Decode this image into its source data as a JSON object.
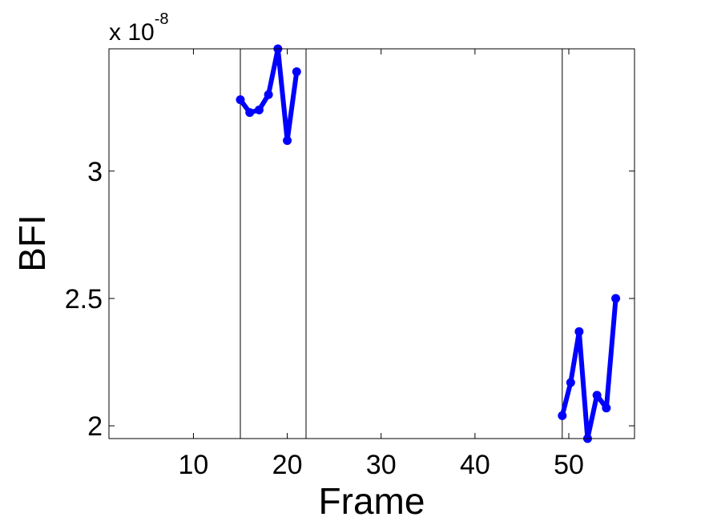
{
  "chart_data": {
    "type": "line",
    "xlabel": "Frame",
    "ylabel": "BFI",
    "y_exponent_label": "x 10",
    "y_exponent_power": "-8",
    "xlim": [
      1,
      57
    ],
    "ylim": [
      1.95,
      3.48
    ],
    "x_ticks": [
      10,
      20,
      30,
      40,
      50
    ],
    "y_ticks": [
      2,
      2.5,
      3
    ],
    "x_tick_labels": [
      "10",
      "20",
      "30",
      "40",
      "50"
    ],
    "y_tick_labels": [
      "2",
      "2.5",
      "3"
    ],
    "vertical_lines": [
      15,
      22,
      49.3
    ],
    "grid": false,
    "series": [
      {
        "color": "#0000ff",
        "segments": [
          [
            [
              15,
              3.28
            ],
            [
              16,
              3.23
            ],
            [
              17,
              3.24
            ],
            [
              18,
              3.3
            ],
            [
              19,
              3.48
            ],
            [
              20,
              3.12
            ],
            [
              21,
              3.39
            ]
          ],
          [
            [
              49.3,
              2.04
            ],
            [
              50.2,
              2.17
            ],
            [
              51.1,
              2.37
            ],
            [
              52.0,
              1.95
            ],
            [
              53.0,
              2.12
            ],
            [
              54.0,
              2.07
            ],
            [
              55.0,
              2.5
            ]
          ]
        ]
      }
    ]
  }
}
